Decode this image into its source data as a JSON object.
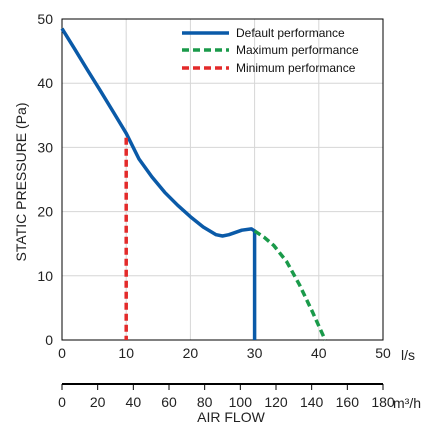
{
  "chart_data": {
    "type": "line",
    "title": "",
    "xlabel": "AIR FLOW",
    "ylabel": "STATIC PRESSURE (Pa)",
    "x_unit": "l/s",
    "x2_unit": "m³/h",
    "xlim": [
      0,
      50
    ],
    "ylim": [
      0,
      50
    ],
    "x_ticks": [
      "0",
      "10",
      "20",
      "30",
      "40",
      "50"
    ],
    "y_ticks": [
      "0",
      "10",
      "20",
      "30",
      "40",
      "50"
    ],
    "x2_ticks": [
      "0",
      "20",
      "40",
      "60",
      "80",
      "100",
      "120",
      "140",
      "160",
      "180"
    ],
    "grid": true,
    "legend_position": "top-right",
    "series": [
      {
        "name": "Default performance",
        "color": "#0a5aa8",
        "style": "solid",
        "x": [
          0,
          2,
          4,
          6,
          8,
          10,
          12,
          14,
          16,
          18,
          20,
          22,
          24,
          25,
          26,
          28,
          29.5,
          30,
          30
        ],
        "y": [
          48.5,
          45.3,
          42.0,
          38.8,
          35.5,
          32.2,
          28.2,
          25.4,
          23.0,
          21.0,
          19.2,
          17.6,
          16.4,
          16.2,
          16.4,
          17.1,
          17.3,
          17.0,
          0
        ]
      },
      {
        "name": "Maximum performance",
        "color": "#1a9a4a",
        "style": "dashed",
        "x": [
          30,
          31.5,
          33,
          35,
          37,
          39,
          41
        ],
        "y": [
          17.0,
          16.0,
          14.7,
          12.2,
          8.6,
          4.4,
          0
        ]
      },
      {
        "name": "Minimum performance",
        "color": "#e32a2a",
        "style": "dashed",
        "x": [
          10,
          10
        ],
        "y": [
          31.5,
          0
        ]
      }
    ]
  }
}
